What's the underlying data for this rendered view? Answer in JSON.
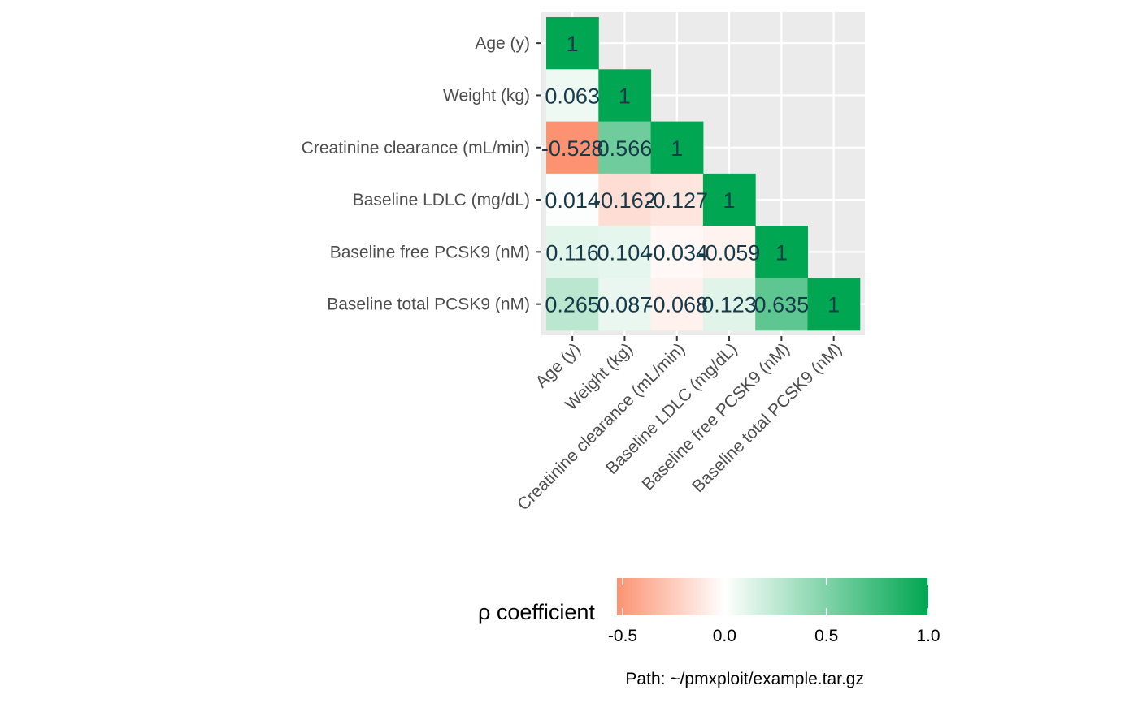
{
  "chart_data": {
    "type": "heatmap",
    "variables": [
      "Age (y)",
      "Weight (kg)",
      "Creatinine clearance (mL/min)",
      "Baseline LDLC (mg/dL)",
      "Baseline free PCSK9 (nM)",
      "Baseline total PCSK9 (nM)"
    ],
    "cells": [
      {
        "row": 0,
        "col": 0,
        "value": 1,
        "label": "1"
      },
      {
        "row": 1,
        "col": 0,
        "value": 0.063,
        "label": "0.063"
      },
      {
        "row": 1,
        "col": 1,
        "value": 1,
        "label": "1"
      },
      {
        "row": 2,
        "col": 0,
        "value": -0.528,
        "label": "-0.528"
      },
      {
        "row": 2,
        "col": 1,
        "value": 0.566,
        "label": "0.566"
      },
      {
        "row": 2,
        "col": 2,
        "value": 1,
        "label": "1"
      },
      {
        "row": 3,
        "col": 0,
        "value": 0.014,
        "label": "0.014"
      },
      {
        "row": 3,
        "col": 1,
        "value": -0.162,
        "label": "-0.162"
      },
      {
        "row": 3,
        "col": 2,
        "value": -0.127,
        "label": "-0.127"
      },
      {
        "row": 3,
        "col": 3,
        "value": 1,
        "label": "1"
      },
      {
        "row": 4,
        "col": 0,
        "value": 0.116,
        "label": "0.116"
      },
      {
        "row": 4,
        "col": 1,
        "value": 0.104,
        "label": "0.104"
      },
      {
        "row": 4,
        "col": 2,
        "value": -0.034,
        "label": "-0.034"
      },
      {
        "row": 4,
        "col": 3,
        "value": -0.059,
        "label": "-0.059"
      },
      {
        "row": 4,
        "col": 4,
        "value": 1,
        "label": "1"
      },
      {
        "row": 5,
        "col": 0,
        "value": 0.265,
        "label": "0.265"
      },
      {
        "row": 5,
        "col": 1,
        "value": 0.087,
        "label": "0.087"
      },
      {
        "row": 5,
        "col": 2,
        "value": -0.068,
        "label": "-0.068"
      },
      {
        "row": 5,
        "col": 3,
        "value": 0.123,
        "label": "0.123"
      },
      {
        "row": 5,
        "col": 4,
        "value": 0.635,
        "label": "0.635"
      },
      {
        "row": 5,
        "col": 5,
        "value": 1,
        "label": "1"
      }
    ],
    "legend": {
      "title": "ρ coefficient",
      "ticks": [
        {
          "value": -0.5,
          "label": "-0.5"
        },
        {
          "value": 0.0,
          "label": "0.0"
        },
        {
          "value": 0.5,
          "label": "0.5"
        },
        {
          "value": 1.0,
          "label": "1.0"
        }
      ],
      "range": [
        -0.528,
        1.0
      ],
      "low_color": "#fc9272",
      "mid_color": "#ffffff",
      "high_color": "#00a651",
      "position": "bottom"
    },
    "caption": "Path: ~/pmxploit/example.tar.gz",
    "colors": {
      "panel_background": "#ebebeb",
      "grid_line": "#ffffff",
      "tick_text": "#4d4d4d",
      "cell_text": "#173a4a"
    },
    "grid": true
  }
}
